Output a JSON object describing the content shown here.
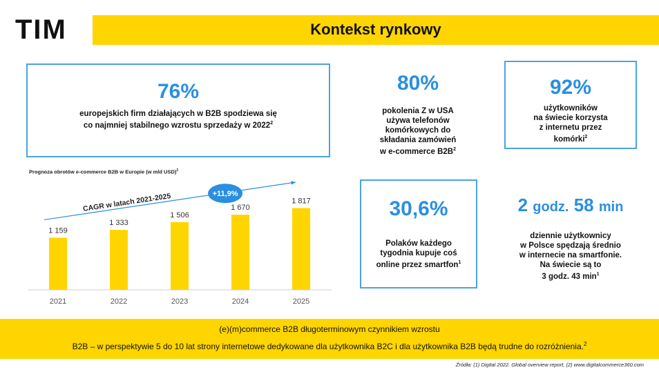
{
  "header": {
    "logo_text": "TIM",
    "title": "Kontekst rynkowy"
  },
  "stats": {
    "s76": {
      "value": "76%",
      "line1": "europejskich firm działających w B2B spodziewa się",
      "line2": "co najmniej stabilnego wzrostu sprzedaży w 2022",
      "sup": "2"
    },
    "s80": {
      "value": "80%",
      "lines": [
        "pokolenia Z w USA",
        "używa telefonów",
        "komórkowych do",
        "składania zamówień"
      ],
      "last": "w e-commerce B2B",
      "sup": "2"
    },
    "s92": {
      "value": "92%",
      "lines": [
        "użytkowników",
        "na świecie korzysta",
        "z internetu przez"
      ],
      "last": "komórki",
      "sup": "2"
    },
    "s306": {
      "value": "30,6%",
      "lines": [
        "Polaków każdego",
        "tygodnia kupuje coś"
      ],
      "last": "online przez smartfon",
      "sup": "1"
    },
    "time": {
      "num1": "2",
      "unit1": "godz.",
      "num2": "58",
      "unit2": "min",
      "lines": [
        "dziennie użytkownicy",
        "w Polsce spędzają średnio",
        "w internecie na smartfonie.",
        "Na świecie są to"
      ],
      "last": "3 godz. 43 min",
      "sup": "1"
    }
  },
  "chart_data": {
    "type": "bar",
    "title": "Prognoza obrotów e-commerce B2B w Europie (w mld USD)",
    "title_sup": "2",
    "categories": [
      "2021",
      "2022",
      "2023",
      "2024",
      "2025"
    ],
    "values": [
      1159,
      1333,
      1506,
      1670,
      1817
    ],
    "value_labels": [
      "1 159",
      "1 333",
      "1 506",
      "1 670",
      "1 817"
    ],
    "ylim": [
      0,
      2300
    ],
    "bar_color": "#ffd500",
    "annotations": {
      "cagr_label": "CAGR w latach 2021-2025",
      "cagr_value": "+11,9%",
      "badge_color": "#2a8fe0"
    }
  },
  "footer": {
    "line1": "(e)(m)commerce B2B długoterminowym czynnikiem wzrostu",
    "line2": "B2B – w perspektywie 5 do 10 lat strony internetowe dedykowane dla użytkownika B2C i dla użytkownika B2B będą trudne do rozróżnienia.",
    "line2_sup": "2",
    "source": "Źródła: (1) Digital 2022. Global overview report, (2) www.digitalcommerce360.com"
  },
  "colors": {
    "accent_yellow": "#ffd500",
    "accent_blue": "#2a8fe0",
    "box_border": "#4aa3df"
  }
}
